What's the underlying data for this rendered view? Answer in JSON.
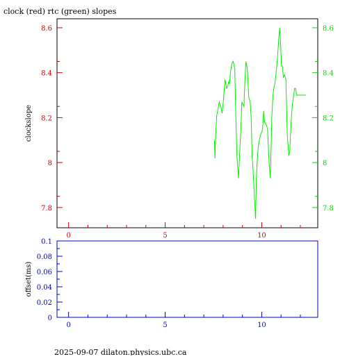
{
  "title": "clock (red) rtc (green) slopes",
  "footer": "2025-09-07 dilaton.physics.ubc.ca",
  "colors": {
    "red_axis": "#cc0000",
    "green_axis": "#00dd00",
    "green_series": "#00ee00",
    "blue_axis": "#0000bb",
    "frame": "#000000"
  },
  "chart_data": [
    {
      "type": "line",
      "ylabel": "clockslope",
      "xlim": [
        -0.6,
        12.9
      ],
      "ylim": [
        7.71,
        8.64
      ],
      "x_ticks": [
        0,
        5,
        10
      ],
      "y_ticks_left": [
        "7.8",
        "8",
        "8.2",
        "8.4",
        "8.6"
      ],
      "y_ticks_right": [
        "7.8",
        "8",
        "8.2",
        "8.4",
        "8.6"
      ],
      "y_tick_values": [
        7.8,
        8.0,
        8.2,
        8.4,
        8.6
      ],
      "series": [
        {
          "color": "green",
          "x": [
            7.55,
            7.58,
            7.62,
            7.67,
            7.72,
            7.8,
            7.88,
            7.95,
            8.02,
            8.1,
            8.18,
            8.24,
            8.29,
            8.33,
            8.38,
            8.45,
            8.52,
            8.6,
            8.66,
            8.72,
            8.8,
            8.85,
            8.92,
            8.97,
            9.02,
            9.08,
            9.12,
            9.18,
            9.25,
            9.33,
            9.4,
            9.45,
            9.5,
            9.55,
            9.62,
            9.68,
            9.72,
            9.76,
            9.82,
            9.88,
            9.92,
            9.97,
            10.02,
            10.05,
            10.1,
            10.15,
            10.22,
            10.3,
            10.38,
            10.45,
            10.52,
            10.58,
            10.62,
            10.68,
            10.72,
            10.8,
            10.88,
            10.93,
            10.98,
            11.02,
            11.06,
            11.12,
            11.18,
            11.25,
            11.32,
            11.4,
            11.45,
            11.52,
            11.58,
            11.65,
            11.7,
            11.75,
            11.8,
            11.85,
            11.9,
            11.95,
            12.0,
            12.05,
            12.1,
            12.16,
            12.22,
            12.28
          ],
          "y": [
            8.1,
            8.02,
            8.13,
            8.21,
            8.23,
            8.27,
            8.25,
            8.22,
            8.28,
            8.37,
            8.33,
            8.34,
            8.36,
            8.35,
            8.4,
            8.44,
            8.45,
            8.42,
            8.2,
            8.02,
            7.93,
            8.03,
            8.15,
            8.27,
            8.26,
            8.25,
            8.35,
            8.45,
            8.42,
            8.29,
            8.27,
            8.2,
            8.03,
            7.97,
            7.85,
            7.75,
            7.93,
            8.0,
            8.07,
            8.1,
            8.12,
            8.13,
            8.14,
            8.16,
            8.23,
            8.18,
            8.17,
            8.15,
            8.0,
            7.93,
            8.2,
            8.3,
            8.33,
            8.35,
            8.38,
            8.45,
            8.55,
            8.6,
            8.52,
            8.43,
            8.43,
            8.38,
            8.39,
            8.37,
            8.13,
            8.03,
            8.05,
            8.18,
            8.25,
            8.3,
            8.33,
            8.33,
            8.3,
            8.3,
            8.3,
            8.3,
            8.3,
            8.3,
            8.3,
            8.3,
            8.3,
            8.3
          ]
        }
      ]
    },
    {
      "type": "line",
      "ylabel": "offset(ms)",
      "xlim": [
        -0.6,
        12.9
      ],
      "ylim": [
        0,
        0.1
      ],
      "x_ticks": [
        0,
        5,
        10
      ],
      "y_ticks": [
        "0",
        "0.02",
        "0.04",
        "0.06",
        "0.08",
        "0.1"
      ],
      "y_tick_values": [
        0,
        0.02,
        0.04,
        0.06,
        0.08,
        0.1
      ],
      "series": []
    }
  ]
}
